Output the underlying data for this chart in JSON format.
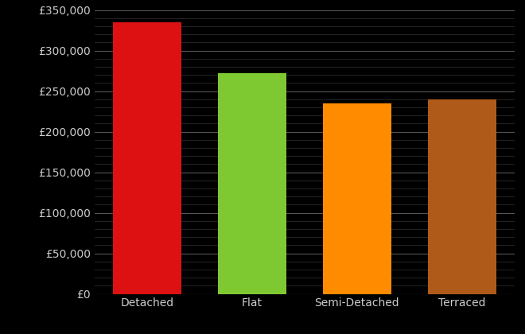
{
  "categories": [
    "Detached",
    "Flat",
    "Semi-Detached",
    "Terraced"
  ],
  "values": [
    335000,
    272000,
    235000,
    240000
  ],
  "bar_colors": [
    "#dd1111",
    "#7ec832",
    "#ff8c00",
    "#b05a1a"
  ],
  "background_color": "#000000",
  "text_color": "#cccccc",
  "grid_color_major": "#555555",
  "grid_color_minor": "#333333",
  "ylim": [
    0,
    350000
  ],
  "ytick_major_step": 50000,
  "ytick_minor_step": 10000,
  "bar_width": 0.65,
  "figsize": [
    6.6,
    4.2
  ],
  "dpi": 100
}
